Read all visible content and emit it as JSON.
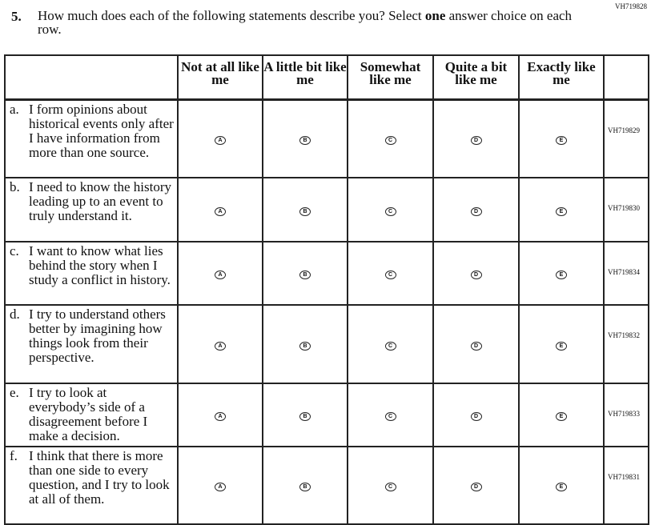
{
  "question": {
    "id": "VH719828",
    "number": "5.",
    "text_before": "How much does each of the following statements describe you? Select ",
    "text_bold": "one",
    "text_after": " answer choice on each row."
  },
  "columns": [
    "Not at all like me",
    "A little bit like me",
    "Somewhat like me",
    "Quite a bit like me",
    "Exactly like me"
  ],
  "option_letters": [
    "A",
    "B",
    "C",
    "D",
    "E"
  ],
  "rows": [
    {
      "letter": "a.",
      "text": "I form opinions about historical events only after I have information from more than one source.",
      "code": "VH719829"
    },
    {
      "letter": "b.",
      "text": "I need to know the history leading up to an event to truly understand it.",
      "code": "VH719830"
    },
    {
      "letter": "c.",
      "text": "I want to know what lies behind the story when I study a conflict in history.",
      "code": "VH719834"
    },
    {
      "letter": "d.",
      "text": "I try to understand others better by imagining how things look from their perspective.",
      "code": "VH719832"
    },
    {
      "letter": "e.",
      "text": "I try to look at everybody’s side of a disagreement before I make a decision.",
      "code": "VH719833"
    },
    {
      "letter": "f.",
      "text": "I think that there is more than one side to every question, and I try to look at all of them.",
      "code": "VH719831"
    }
  ]
}
